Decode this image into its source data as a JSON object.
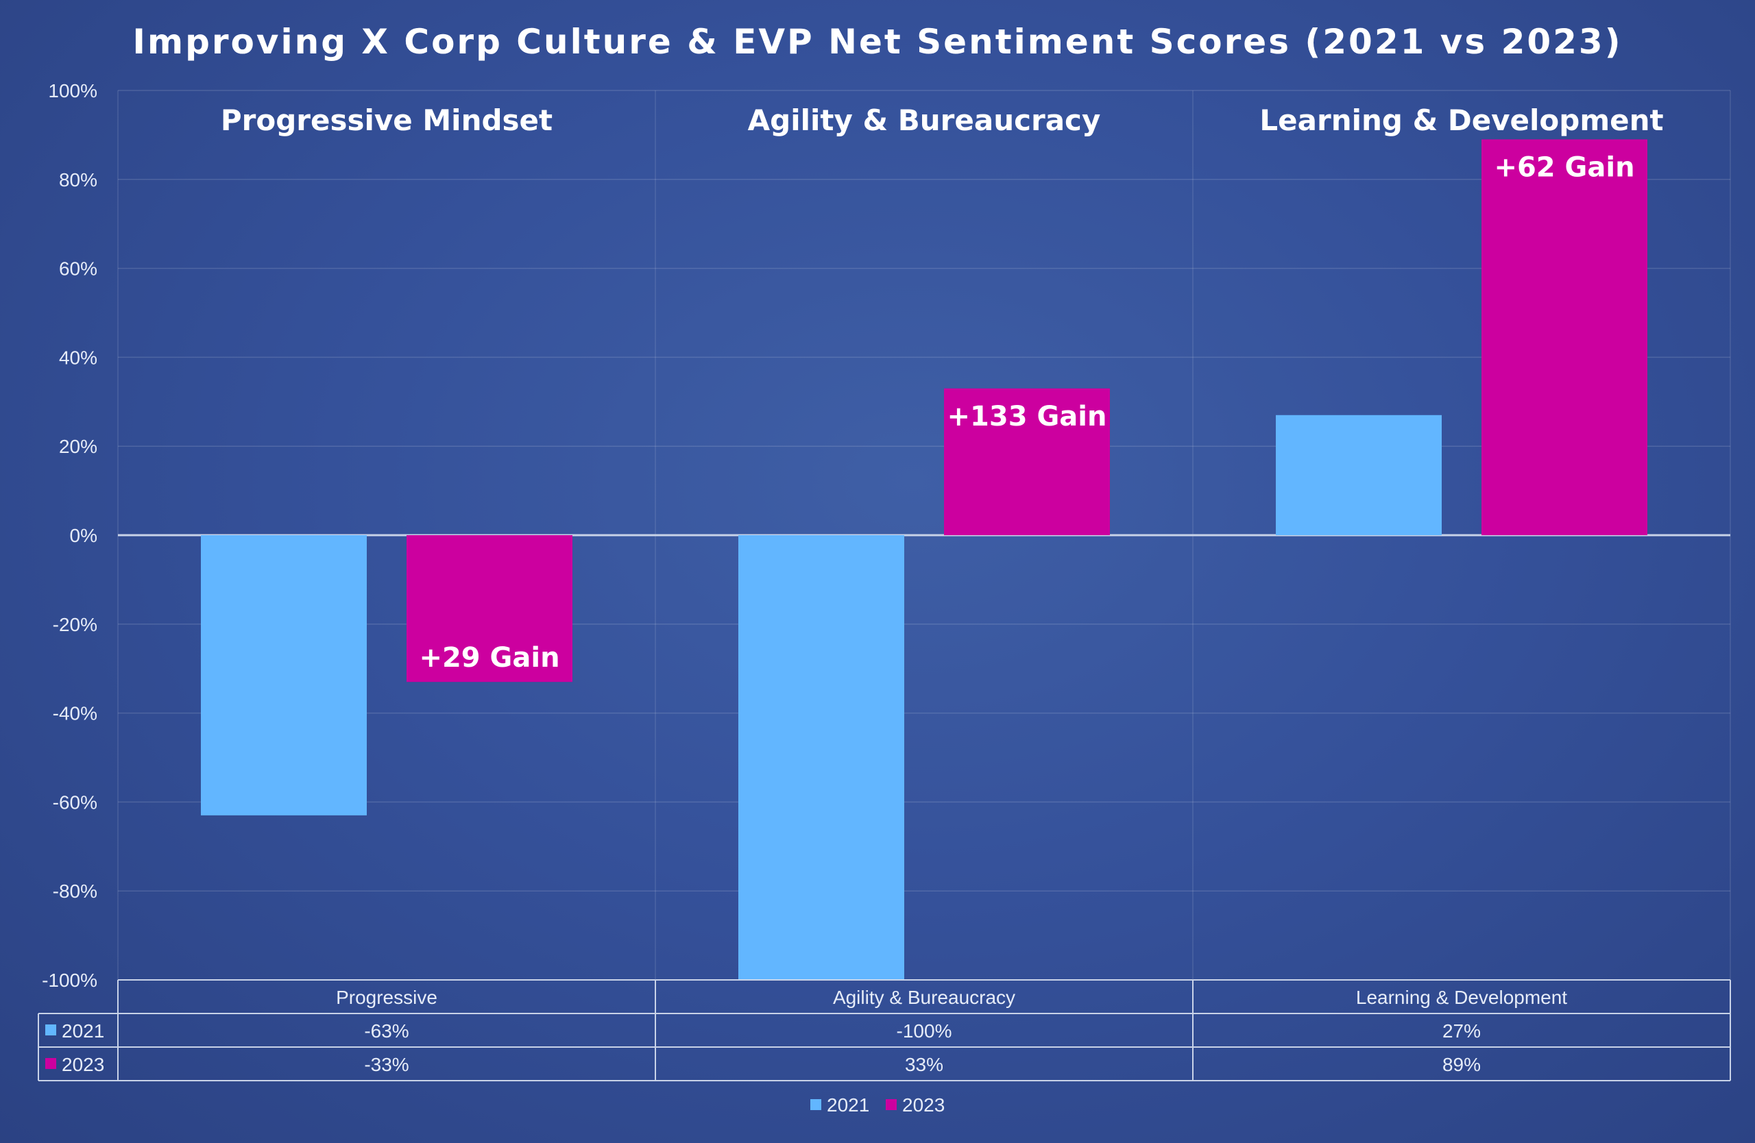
{
  "chart_data": {
    "type": "bar",
    "title": "Improving X Corp Culture & EVP Net Sentiment Scores (2021 vs 2023)",
    "group_titles": [
      "Progressive Mindset",
      "Agility & Bureaucracy",
      "Learning & Development"
    ],
    "categories": [
      "Progressive",
      "Agility & Bureaucracy",
      "Learning & Development"
    ],
    "series": [
      {
        "name": "2021",
        "color": "#62b6ff",
        "values": [
          -63,
          -100,
          27
        ],
        "labels": [
          "-63%",
          "-100%",
          "27%"
        ]
      },
      {
        "name": "2023",
        "color": "#cc009f",
        "values": [
          -33,
          33,
          89
        ],
        "labels": [
          "-33%",
          "33%",
          "89%"
        ]
      }
    ],
    "annotations": [
      "+29 Gain",
      "+133 Gain",
      "+62 Gain"
    ],
    "ylim": [
      -100,
      100
    ],
    "yticks": [
      "100%",
      "80%",
      "60%",
      "40%",
      "20%",
      "0%",
      "-20%",
      "-40%",
      "-60%",
      "-80%",
      "-100%"
    ],
    "grid": true,
    "data_table": true,
    "legend_position": "bottom-center"
  }
}
